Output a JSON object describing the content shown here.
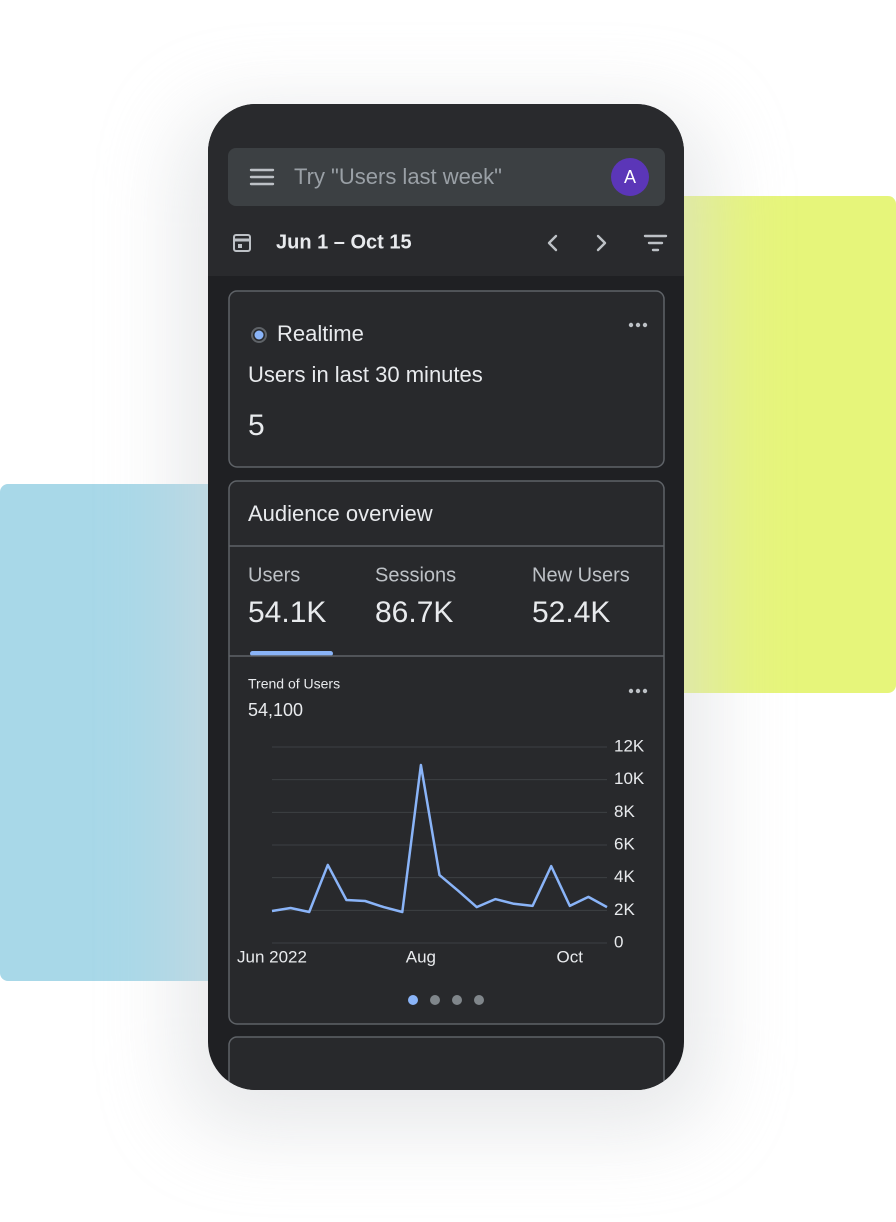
{
  "search": {
    "placeholder": "Try \"Users last week\"",
    "avatar": "A"
  },
  "date_range": "Jun 1 – Oct 15",
  "realtime": {
    "title": "Realtime",
    "subtitle": "Users in last 30 minutes",
    "value": "5"
  },
  "audience": {
    "title": "Audience overview",
    "metrics": [
      {
        "label": "Users",
        "value": "54.1K"
      },
      {
        "label": "Sessions",
        "value": "86.7K"
      },
      {
        "label": "New Users",
        "value": "52.4K"
      }
    ]
  },
  "chart_data": {
    "type": "line",
    "title": "Trend of Users",
    "subtitle": "54,100",
    "categories": [
      "Jun 2022",
      null,
      null,
      null,
      null,
      null,
      null,
      null,
      "Aug",
      null,
      null,
      null,
      null,
      null,
      null,
      null,
      "Oct",
      null,
      null
    ],
    "values": [
      1960,
      2140,
      1900,
      4780,
      2630,
      2570,
      2200,
      1900,
      10900,
      4160,
      3200,
      2200,
      2690,
      2400,
      2270,
      4710,
      2270,
      2820,
      2200
    ],
    "color": "#8ab4f8",
    "ylim": [
      0,
      12000
    ],
    "yticks": [
      0,
      {
        "value": 2000,
        "label": "2K"
      },
      {
        "value": 4000,
        "label": "4K"
      },
      {
        "value": 6000,
        "label": "6K"
      },
      {
        "value": 8000,
        "label": "8K"
      },
      {
        "value": 10000,
        "label": "10K"
      },
      {
        "value": 12000,
        "label": "12K"
      }
    ],
    "grid": true
  }
}
